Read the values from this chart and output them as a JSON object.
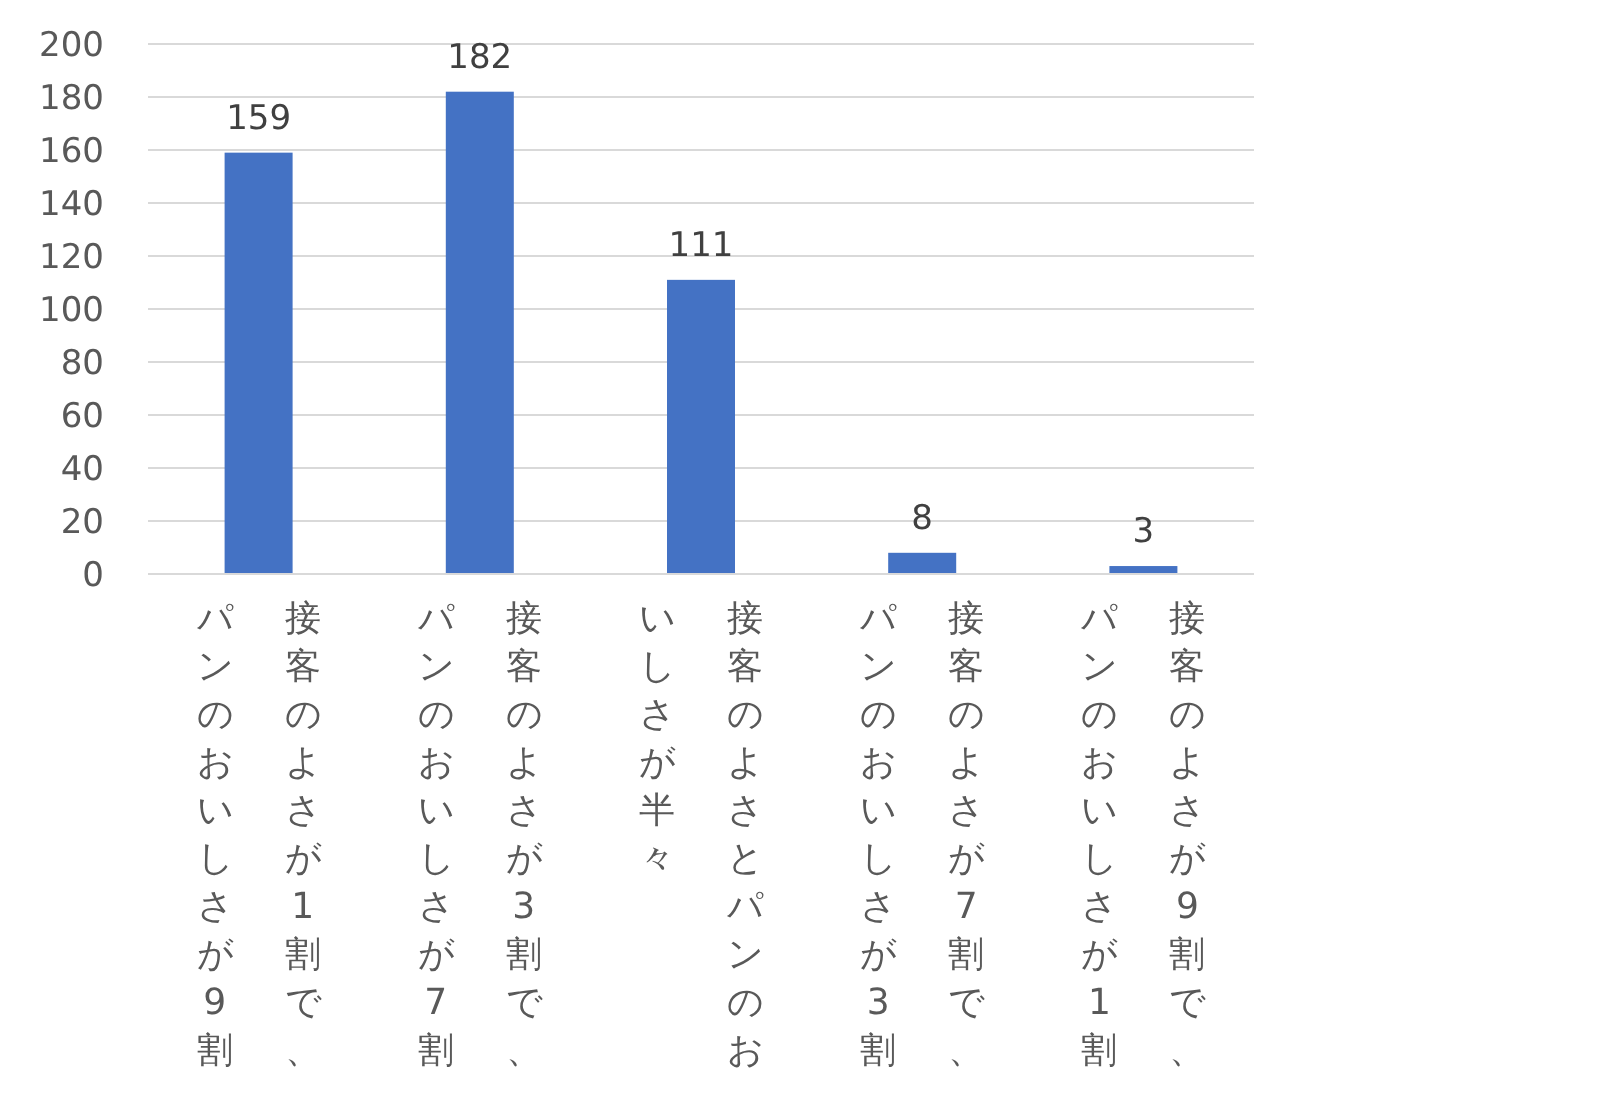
{
  "chart_data": {
    "type": "bar",
    "categories": [
      "接客のよさが1割で、パンのおいしさが9割",
      "接客のよさが3割で、パンのおいしさが7割",
      "接客のよさとパンのおいしさが半々",
      "接客のよさが7割で、パンのおいしさが3割",
      "接客のよさが9割で、パンのおいしさが1割"
    ],
    "values": [
      159,
      182,
      111,
      8,
      3
    ],
    "color": "#4472c4",
    "ylim": [
      0,
      200
    ],
    "yticks": [
      0,
      20,
      40,
      60,
      80,
      100,
      120,
      140,
      160,
      180,
      200
    ],
    "grid": "y",
    "data_labels": true
  }
}
